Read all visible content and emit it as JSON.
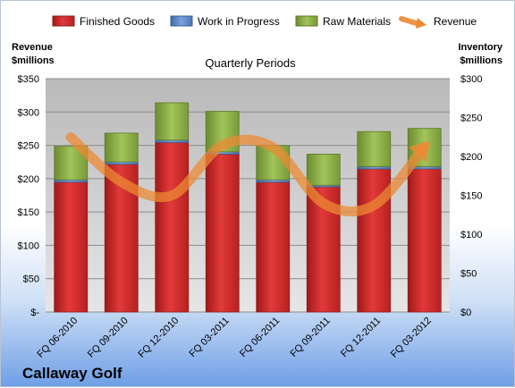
{
  "chart_data": {
    "type": "bar",
    "title": "",
    "subtitle": "Quarterly Periods",
    "company": "Callaway Golf",
    "categories": [
      "FQ 06-2010",
      "FQ 09-2010",
      "FQ 12-2010",
      "FQ 03-2011",
      "FQ 06-2011",
      "FQ 09-2011",
      "FQ 12-2011",
      "FQ 03-2012"
    ],
    "left_axis": {
      "label_line1": "Revenue",
      "label_line2": "$millions",
      "range": [
        0,
        350
      ],
      "ticks": [
        0,
        50,
        100,
        150,
        200,
        250,
        300,
        350
      ],
      "tick_labels": [
        "$-",
        "$50",
        "$100",
        "$150",
        "$200",
        "$250",
        "$300",
        "$350"
      ]
    },
    "right_axis": {
      "label_line1": "Inventory",
      "label_line2": "$millions",
      "range": [
        0,
        300
      ],
      "ticks": [
        0,
        50,
        100,
        150,
        200,
        250,
        300
      ],
      "tick_labels": [
        "$0",
        "$50",
        "$100",
        "$150",
        "$200",
        "$250",
        "$300"
      ]
    },
    "stacked_series": [
      {
        "name": "Finished Goods",
        "axis": "right",
        "color": "#d42a2a",
        "values": [
          167,
          190,
          218,
          203,
          167,
          161,
          184,
          184
        ]
      },
      {
        "name": "Work in Progress",
        "axis": "right",
        "color": "#5b85c8",
        "values": [
          3,
          3,
          3,
          3,
          3,
          2,
          3,
          3
        ]
      },
      {
        "name": "Raw Materials",
        "axis": "right",
        "color": "#8db04a",
        "values": [
          43,
          37,
          48,
          52,
          44,
          40,
          45,
          49
        ]
      }
    ],
    "line_series": {
      "name": "Revenue",
      "axis": "left",
      "color": "#ec8a34",
      "values": [
        262,
        195,
        175,
        250,
        247,
        163,
        160,
        248
      ]
    },
    "grid": true,
    "legend_position": "top"
  }
}
